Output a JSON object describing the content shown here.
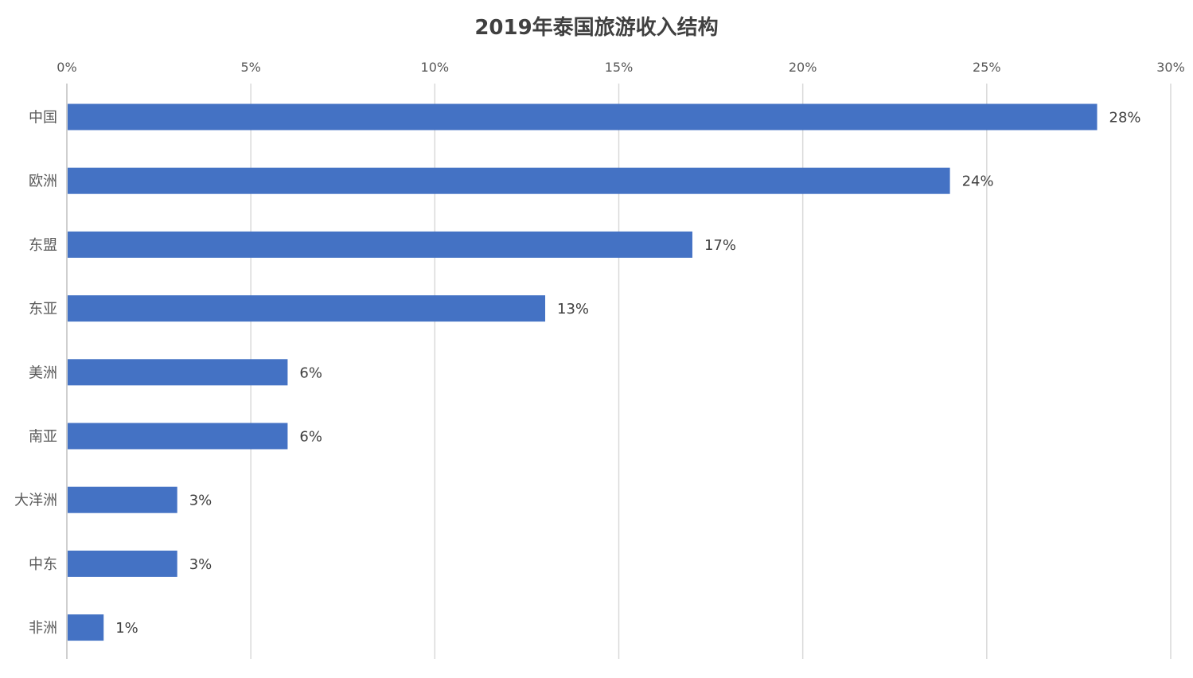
{
  "chart_data": {
    "type": "bar",
    "orientation": "horizontal",
    "title": "2019年泰国旅游收入结构",
    "categories": [
      "中国",
      "欧洲",
      "东盟",
      "东亚",
      "美洲",
      "南亚",
      "大洋洲",
      "中东",
      "非洲"
    ],
    "values": [
      28,
      24,
      17,
      13,
      6,
      6,
      3,
      3,
      1
    ],
    "data_labels": [
      "28%",
      "24%",
      "17%",
      "13%",
      "6%",
      "6%",
      "3%",
      "3%",
      "1%"
    ],
    "x_ticks": [
      "0%",
      "5%",
      "10%",
      "15%",
      "20%",
      "25%",
      "30%"
    ],
    "x_tick_values": [
      0,
      5,
      10,
      15,
      20,
      25,
      30
    ],
    "xlim": [
      0,
      30
    ],
    "x_axis_position": "top",
    "grid": true,
    "legend": false,
    "bar_color": "#4472c4"
  }
}
